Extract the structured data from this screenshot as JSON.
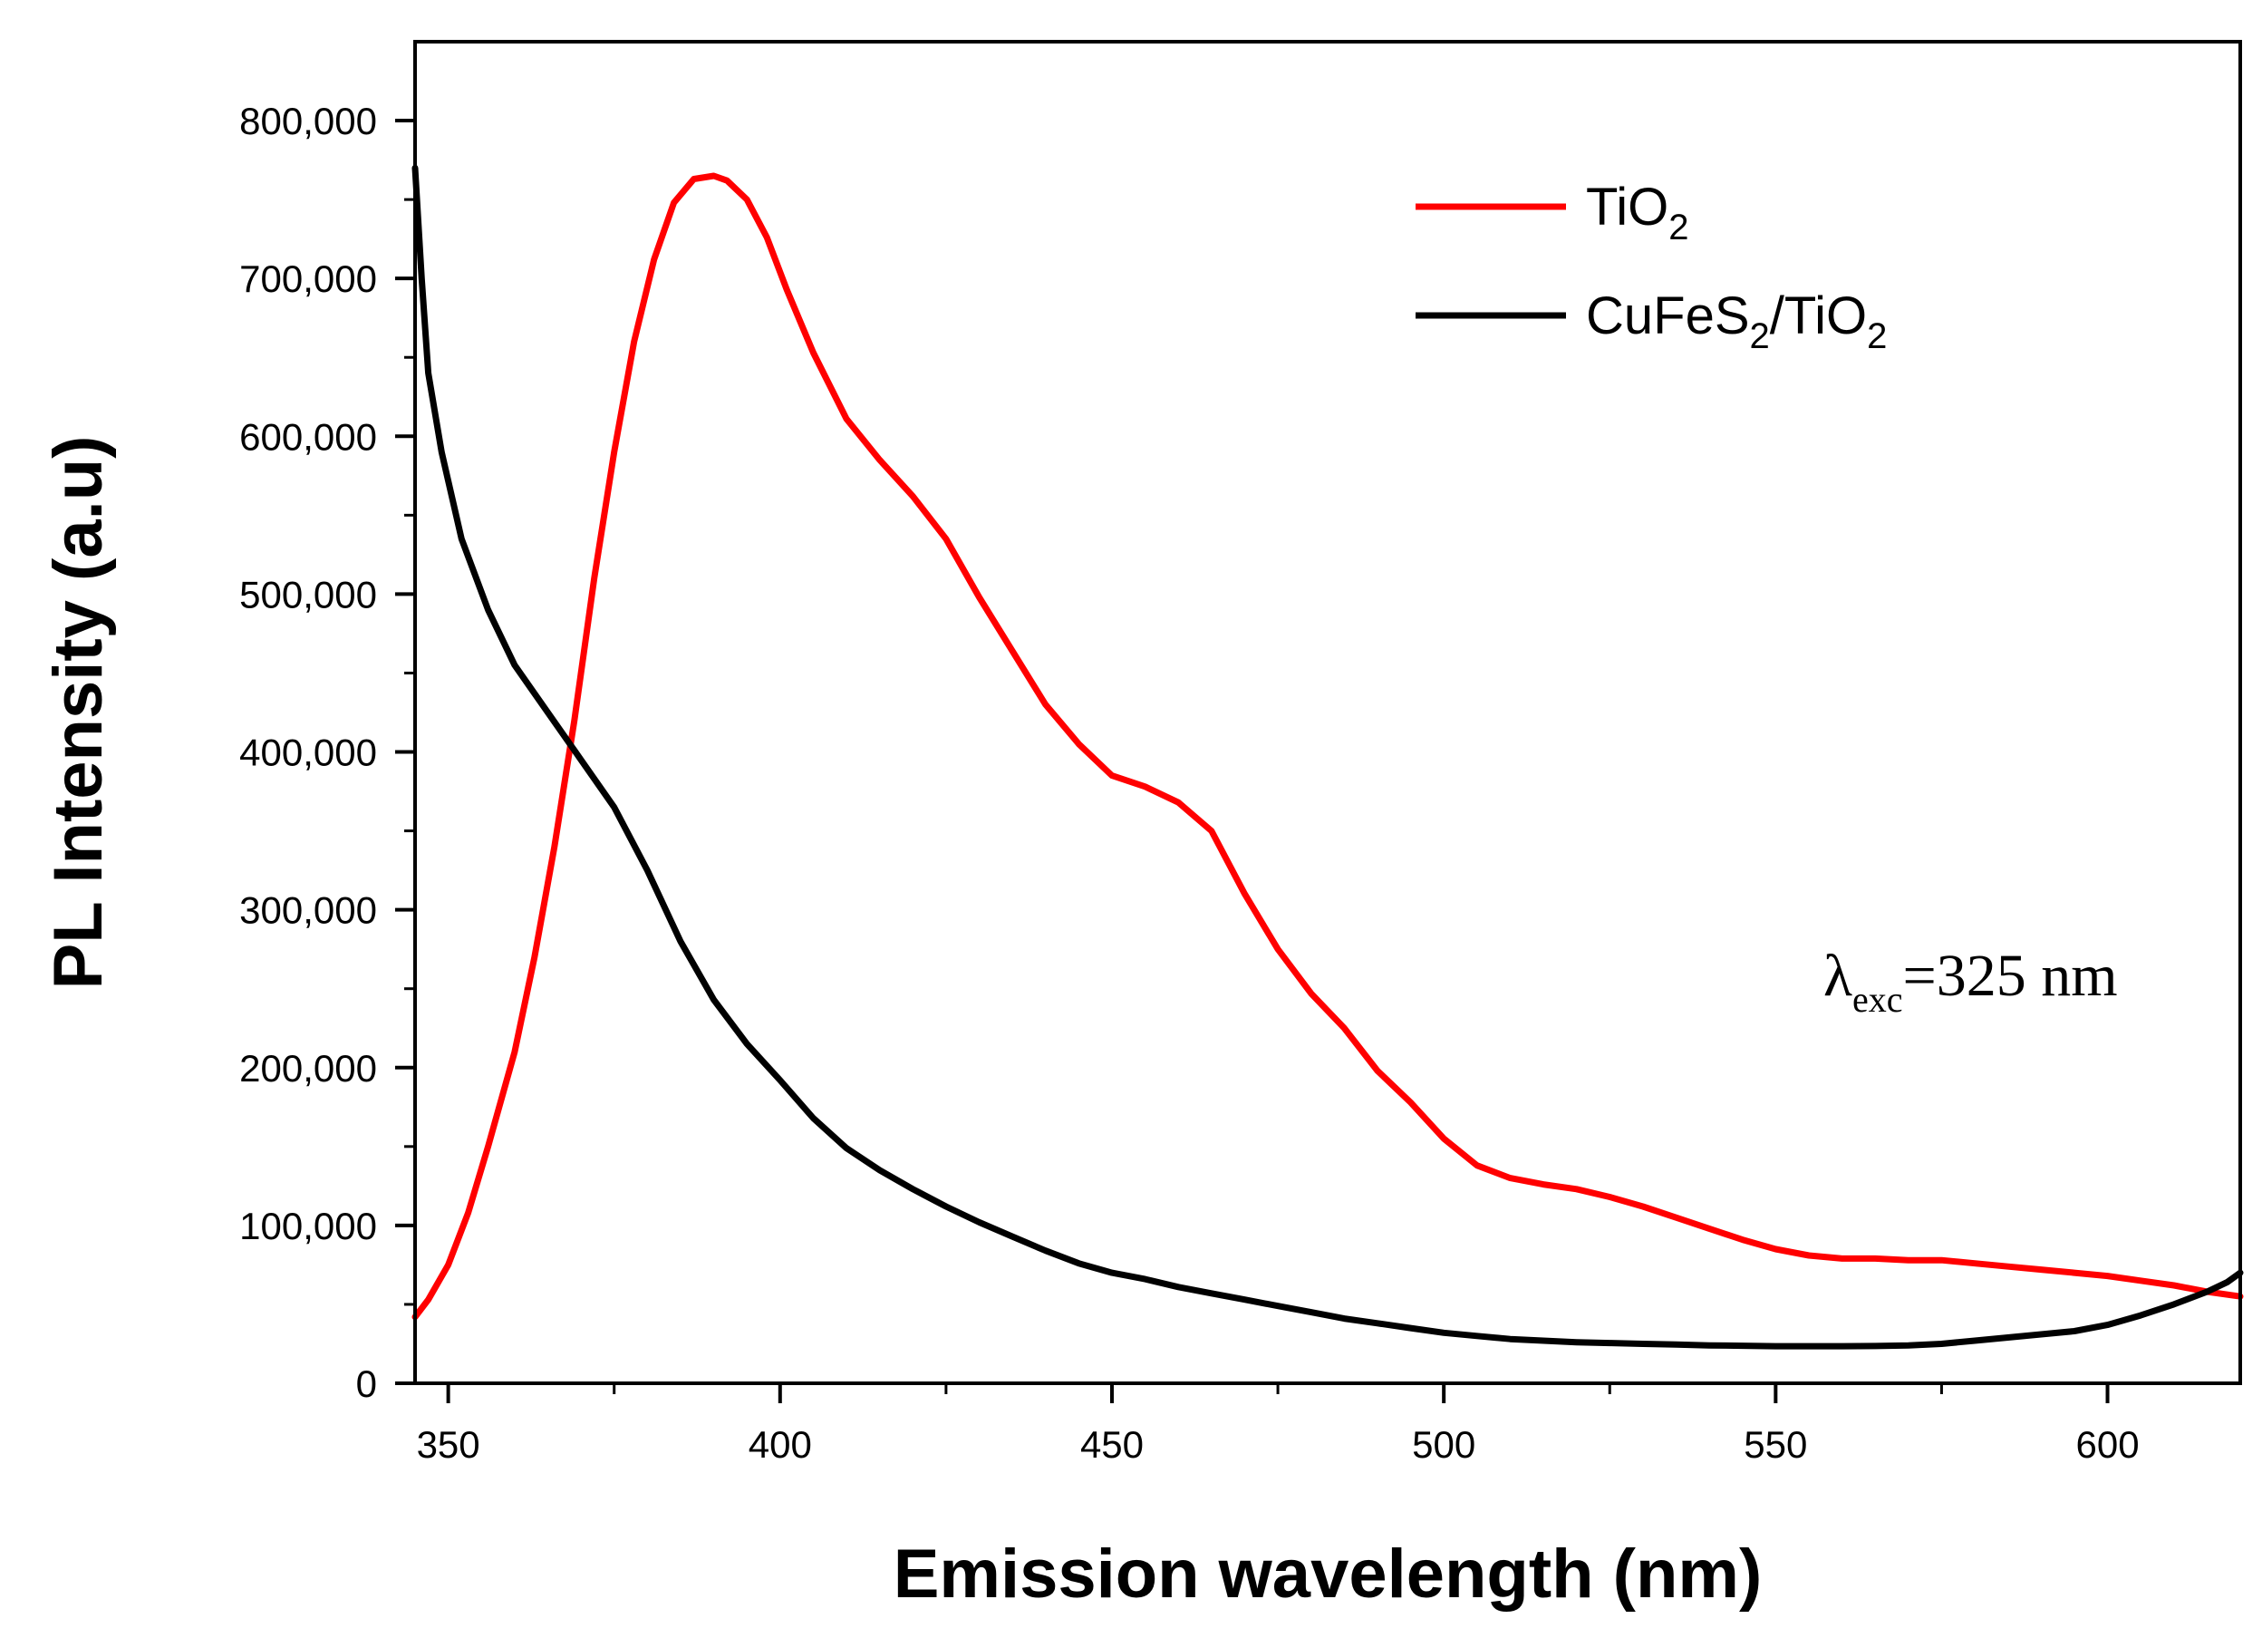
{
  "chart_data": {
    "type": "line",
    "title": "",
    "xlabel": "Emission wavelength (nm)",
    "ylabel": "PL Intensity (a.u)",
    "xlim": [
      345,
      620
    ],
    "ylim": [
      0,
      850000
    ],
    "xticks": [
      350,
      400,
      450,
      500,
      550,
      600
    ],
    "xtick_labels": [
      "350",
      "400",
      "450",
      "500",
      "550",
      "600"
    ],
    "yticks": [
      0,
      100000,
      200000,
      300000,
      400000,
      500000,
      600000,
      700000,
      800000
    ],
    "ytick_labels": [
      "0",
      "100,000",
      "200,000",
      "300,000",
      "400,000",
      "500,000",
      "600,000",
      "700,000",
      "800,000"
    ],
    "grid": false,
    "legend_position": "top-right",
    "annotation": {
      "symbol": "λ",
      "subscript": "exc",
      "text": "=325 nm"
    },
    "series": [
      {
        "name": "TiO2",
        "legend_main": "TiO",
        "legend_sub": "2",
        "legend_rest": "",
        "legend_sub2": "",
        "color": "#ff0000",
        "x": [
          345,
          347,
          350,
          353,
          356,
          360,
          363,
          366,
          369,
          372,
          375,
          378,
          381,
          384,
          387,
          390,
          392,
          395,
          398,
          401,
          405,
          410,
          415,
          420,
          425,
          430,
          435,
          440,
          445,
          450,
          455,
          460,
          465,
          470,
          475,
          480,
          485,
          490,
          495,
          500,
          505,
          510,
          515,
          520,
          525,
          530,
          535,
          540,
          545,
          550,
          555,
          560,
          565,
          570,
          575,
          580,
          585,
          590,
          595,
          600,
          605,
          610,
          615,
          620
        ],
        "y": [
          42000,
          53000,
          75000,
          108000,
          150000,
          210000,
          270000,
          340000,
          420000,
          510000,
          590000,
          660000,
          712000,
          748000,
          763000,
          765000,
          762000,
          750000,
          726000,
          693000,
          653000,
          611000,
          585000,
          562000,
          535000,
          498000,
          464000,
          430000,
          405000,
          385000,
          378000,
          368000,
          350000,
          310000,
          275000,
          247000,
          225000,
          198000,
          178000,
          155000,
          138000,
          130000,
          126000,
          123000,
          118000,
          112000,
          105000,
          98000,
          91000,
          85000,
          81000,
          79000,
          79000,
          78000,
          78000,
          76000,
          74000,
          72000,
          70000,
          68000,
          65000,
          62000,
          58000,
          55000
        ]
      },
      {
        "name": "CuFeS2/TiO2",
        "legend_main": "CuFeS",
        "legend_sub": "2",
        "legend_rest": "/TiO",
        "legend_sub2": "2",
        "color": "#000000",
        "x": [
          345,
          346,
          347,
          349,
          352,
          356,
          360,
          365,
          370,
          375,
          380,
          385,
          390,
          395,
          400,
          405,
          410,
          415,
          420,
          425,
          430,
          435,
          440,
          445,
          450,
          455,
          460,
          465,
          470,
          475,
          480,
          485,
          490,
          495,
          500,
          505,
          510,
          515,
          520,
          525,
          530,
          535,
          540,
          545,
          550,
          555,
          560,
          565,
          570,
          575,
          580,
          585,
          590,
          595,
          600,
          605,
          610,
          615,
          618,
          620
        ],
        "y": [
          770000,
          700000,
          640000,
          590000,
          535000,
          490000,
          455000,
          425000,
          395000,
          365000,
          325000,
          280000,
          243000,
          215000,
          192000,
          168000,
          149000,
          135000,
          123000,
          112000,
          102000,
          93000,
          84000,
          76000,
          70000,
          66000,
          61000,
          57000,
          53000,
          49000,
          45000,
          41000,
          38000,
          35000,
          32000,
          30000,
          28000,
          27000,
          26000,
          25500,
          25000,
          24500,
          24000,
          23800,
          23500,
          23500,
          23500,
          23600,
          24000,
          25000,
          27000,
          29000,
          31000,
          33000,
          37000,
          43000,
          50000,
          58000,
          64000,
          70000
        ]
      }
    ]
  }
}
